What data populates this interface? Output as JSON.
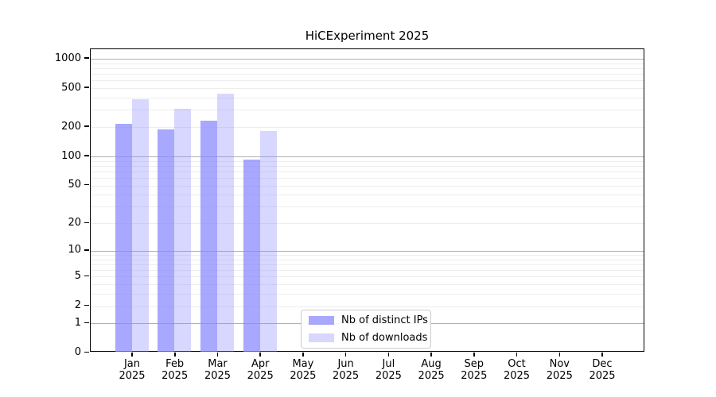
{
  "chart_data": {
    "type": "bar",
    "title": "HiCExperiment 2025",
    "xlabel": "",
    "ylabel": "",
    "yscale": "log1p (log10 of value+1), 0 at baseline",
    "yticks": [
      0,
      1,
      2,
      5,
      10,
      20,
      50,
      100,
      200,
      500,
      1000
    ],
    "ylim": [
      0,
      1265
    ],
    "grid": "on",
    "grid_major_at": [
      1,
      10,
      100,
      1000
    ],
    "categories": [
      "Jan",
      "Feb",
      "Mar",
      "Apr",
      "May",
      "Jun",
      "Jul",
      "Aug",
      "Sep",
      "Oct",
      "Nov",
      "Dec"
    ],
    "year_label": "2025",
    "series": [
      {
        "name": "Nb of distinct IPs",
        "color": "rgba(134,134,255,0.72)",
        "values": [
          210,
          185,
          225,
          90,
          null,
          null,
          null,
          null,
          null,
          null,
          null,
          null
        ]
      },
      {
        "name": "Nb of downloads",
        "color": "rgba(134,134,255,0.33)",
        "values": [
          375,
          300,
          430,
          178,
          null,
          null,
          null,
          null,
          null,
          null,
          null,
          null
        ]
      }
    ],
    "legend_position": "inside lower-center"
  },
  "colors": {
    "bar_ips_hex_on_white": "#aaaafb",
    "bar_downloads_hex_on_white": "#d8d8fa",
    "grid_major": "#b0b0b0",
    "grid_minor": "#ededed",
    "axis": "#000000",
    "legend_border": "#cccccc",
    "background": "#ffffff"
  }
}
